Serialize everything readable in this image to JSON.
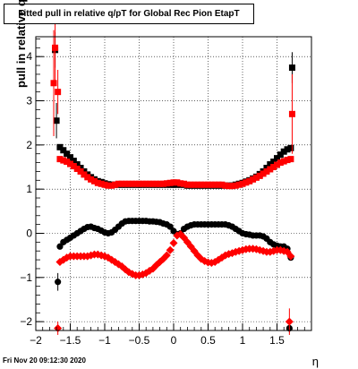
{
  "chart_data": {
    "type": "scatter",
    "title": "Fitted pull in relative q/pT for Global Rec Pion EtapT",
    "xlabel": "η",
    "ylabel": "pull in relative q/pT",
    "footer": "Fri Nov 20 09:12:30 2020",
    "xlim": [
      -2.0,
      2.0
    ],
    "ylim": [
      -2.2,
      4.45
    ],
    "xticks": [
      -2,
      -1.5,
      -1,
      -0.5,
      0,
      0.5,
      1,
      1.5
    ],
    "yticks": [
      -2,
      -1,
      0,
      1,
      2,
      3,
      4
    ],
    "grid": true,
    "marker_color_black": "#000000",
    "marker_color_red": "#ff0000",
    "series": [
      {
        "role": "mean-black",
        "marker": "circle",
        "color": "#000000",
        "points": [
          [
            -1.65,
            -0.3
          ],
          [
            -1.6,
            -0.2
          ],
          [
            -1.55,
            -0.15
          ],
          [
            -1.5,
            -0.1
          ],
          [
            -1.45,
            -0.05
          ],
          [
            -1.4,
            0.0
          ],
          [
            -1.35,
            0.05
          ],
          [
            -1.3,
            0.1
          ],
          [
            -1.25,
            0.14
          ],
          [
            -1.2,
            0.15
          ],
          [
            -1.15,
            0.12
          ],
          [
            -1.1,
            0.1
          ],
          [
            -1.05,
            0.06
          ],
          [
            -1.0,
            0.02
          ],
          [
            -0.95,
            0.0
          ],
          [
            -0.9,
            0.02
          ],
          [
            -0.85,
            0.08
          ],
          [
            -0.8,
            0.15
          ],
          [
            -0.75,
            0.22
          ],
          [
            -0.7,
            0.27
          ],
          [
            -0.65,
            0.28
          ],
          [
            -0.6,
            0.28
          ],
          [
            -0.55,
            0.28
          ],
          [
            -0.5,
            0.28
          ],
          [
            -0.45,
            0.28
          ],
          [
            -0.4,
            0.28
          ],
          [
            -0.35,
            0.27
          ],
          [
            -0.3,
            0.27
          ],
          [
            -0.25,
            0.26
          ],
          [
            -0.2,
            0.25
          ],
          [
            -0.15,
            0.22
          ],
          [
            -0.1,
            0.2
          ],
          [
            -0.05,
            0.15
          ],
          [
            0.0,
            0.05
          ],
          [
            0.05,
            -0.02
          ],
          [
            0.1,
            0.0
          ],
          [
            0.15,
            0.1
          ],
          [
            0.2,
            0.15
          ],
          [
            0.25,
            0.18
          ],
          [
            0.3,
            0.2
          ],
          [
            0.35,
            0.2
          ],
          [
            0.4,
            0.2
          ],
          [
            0.45,
            0.2
          ],
          [
            0.5,
            0.2
          ],
          [
            0.55,
            0.2
          ],
          [
            0.6,
            0.2
          ],
          [
            0.65,
            0.2
          ],
          [
            0.7,
            0.2
          ],
          [
            0.75,
            0.2
          ],
          [
            0.8,
            0.18
          ],
          [
            0.85,
            0.15
          ],
          [
            0.9,
            0.1
          ],
          [
            0.95,
            0.05
          ],
          [
            1.0,
            0.0
          ],
          [
            1.05,
            -0.02
          ],
          [
            1.1,
            -0.03
          ],
          [
            1.15,
            -0.05
          ],
          [
            1.2,
            -0.05
          ],
          [
            1.25,
            -0.05
          ],
          [
            1.3,
            -0.07
          ],
          [
            1.35,
            -0.12
          ],
          [
            1.4,
            -0.2
          ],
          [
            1.45,
            -0.25
          ],
          [
            1.5,
            -0.28
          ],
          [
            1.55,
            -0.3
          ],
          [
            1.6,
            -0.3
          ],
          [
            1.65,
            -0.35
          ],
          [
            1.7,
            -0.55
          ]
        ],
        "outliers": [
          {
            "x": -1.68,
            "y": -1.1,
            "err": 0.2
          },
          {
            "x": 1.68,
            "y": -2.15,
            "err": 0.1
          }
        ]
      },
      {
        "role": "mean-red",
        "marker": "diamond",
        "color": "#ff0000",
        "points": [
          [
            -1.65,
            -0.65
          ],
          [
            -1.6,
            -0.6
          ],
          [
            -1.55,
            -0.55
          ],
          [
            -1.5,
            -0.52
          ],
          [
            -1.45,
            -0.52
          ],
          [
            -1.4,
            -0.52
          ],
          [
            -1.35,
            -0.52
          ],
          [
            -1.3,
            -0.52
          ],
          [
            -1.25,
            -0.52
          ],
          [
            -1.2,
            -0.5
          ],
          [
            -1.15,
            -0.48
          ],
          [
            -1.1,
            -0.48
          ],
          [
            -1.05,
            -0.5
          ],
          [
            -1.0,
            -0.52
          ],
          [
            -0.95,
            -0.55
          ],
          [
            -0.9,
            -0.6
          ],
          [
            -0.85,
            -0.65
          ],
          [
            -0.8,
            -0.7
          ],
          [
            -0.75,
            -0.75
          ],
          [
            -0.7,
            -0.82
          ],
          [
            -0.65,
            -0.88
          ],
          [
            -0.6,
            -0.92
          ],
          [
            -0.55,
            -0.95
          ],
          [
            -0.5,
            -0.95
          ],
          [
            -0.45,
            -0.93
          ],
          [
            -0.4,
            -0.9
          ],
          [
            -0.35,
            -0.85
          ],
          [
            -0.3,
            -0.8
          ],
          [
            -0.25,
            -0.72
          ],
          [
            -0.2,
            -0.65
          ],
          [
            -0.15,
            -0.58
          ],
          [
            -0.1,
            -0.5
          ],
          [
            -0.05,
            -0.38
          ],
          [
            0.0,
            -0.22
          ],
          [
            0.05,
            -0.05
          ],
          [
            0.1,
            -0.02
          ],
          [
            0.15,
            -0.1
          ],
          [
            0.2,
            -0.2
          ],
          [
            0.25,
            -0.3
          ],
          [
            0.3,
            -0.4
          ],
          [
            0.35,
            -0.5
          ],
          [
            0.4,
            -0.58
          ],
          [
            0.45,
            -0.63
          ],
          [
            0.5,
            -0.66
          ],
          [
            0.55,
            -0.67
          ],
          [
            0.6,
            -0.65
          ],
          [
            0.65,
            -0.6
          ],
          [
            0.7,
            -0.55
          ],
          [
            0.75,
            -0.5
          ],
          [
            0.8,
            -0.47
          ],
          [
            0.85,
            -0.45
          ],
          [
            0.9,
            -0.42
          ],
          [
            0.95,
            -0.4
          ],
          [
            1.0,
            -0.38
          ],
          [
            1.05,
            -0.36
          ],
          [
            1.1,
            -0.35
          ],
          [
            1.15,
            -0.35
          ],
          [
            1.2,
            -0.36
          ],
          [
            1.25,
            -0.38
          ],
          [
            1.3,
            -0.4
          ],
          [
            1.35,
            -0.42
          ],
          [
            1.4,
            -0.42
          ],
          [
            1.45,
            -0.4
          ],
          [
            1.5,
            -0.38
          ],
          [
            1.55,
            -0.38
          ],
          [
            1.6,
            -0.4
          ],
          [
            1.65,
            -0.42
          ],
          [
            1.7,
            -0.52
          ]
        ],
        "outliers": [
          {
            "x": -1.68,
            "y": -2.15,
            "err": 0.15
          },
          {
            "x": 1.68,
            "y": -2.0,
            "err": 0.3
          }
        ]
      },
      {
        "role": "width-black",
        "marker": "square",
        "color": "#000000",
        "points": [
          [
            -1.65,
            1.95
          ],
          [
            -1.6,
            1.88
          ],
          [
            -1.55,
            1.8
          ],
          [
            -1.5,
            1.72
          ],
          [
            -1.45,
            1.64
          ],
          [
            -1.4,
            1.56
          ],
          [
            -1.35,
            1.48
          ],
          [
            -1.3,
            1.4
          ],
          [
            -1.25,
            1.33
          ],
          [
            -1.2,
            1.27
          ],
          [
            -1.15,
            1.22
          ],
          [
            -1.1,
            1.18
          ],
          [
            -1.05,
            1.16
          ],
          [
            -1.0,
            1.13
          ],
          [
            -0.95,
            1.11
          ],
          [
            -0.9,
            1.1
          ],
          [
            -0.85,
            1.1
          ],
          [
            -0.8,
            1.1
          ],
          [
            -0.75,
            1.1
          ],
          [
            -0.7,
            1.1
          ],
          [
            -0.65,
            1.1
          ],
          [
            -0.6,
            1.1
          ],
          [
            -0.55,
            1.1
          ],
          [
            -0.5,
            1.1
          ],
          [
            -0.45,
            1.1
          ],
          [
            -0.4,
            1.1
          ],
          [
            -0.35,
            1.1
          ],
          [
            -0.3,
            1.1
          ],
          [
            -0.25,
            1.1
          ],
          [
            -0.2,
            1.1
          ],
          [
            -0.15,
            1.1
          ],
          [
            -0.1,
            1.1
          ],
          [
            -0.05,
            1.1
          ],
          [
            0.0,
            1.1
          ],
          [
            0.05,
            1.1
          ],
          [
            0.1,
            1.1
          ],
          [
            0.15,
            1.1
          ],
          [
            0.2,
            1.08
          ],
          [
            0.25,
            1.08
          ],
          [
            0.3,
            1.08
          ],
          [
            0.35,
            1.08
          ],
          [
            0.4,
            1.08
          ],
          [
            0.45,
            1.08
          ],
          [
            0.5,
            1.08
          ],
          [
            0.55,
            1.08
          ],
          [
            0.6,
            1.08
          ],
          [
            0.65,
            1.08
          ],
          [
            0.7,
            1.08
          ],
          [
            0.75,
            1.08
          ],
          [
            0.8,
            1.08
          ],
          [
            0.85,
            1.08
          ],
          [
            0.9,
            1.1
          ],
          [
            0.95,
            1.12
          ],
          [
            1.0,
            1.14
          ],
          [
            1.05,
            1.17
          ],
          [
            1.1,
            1.2
          ],
          [
            1.15,
            1.24
          ],
          [
            1.2,
            1.28
          ],
          [
            1.25,
            1.34
          ],
          [
            1.3,
            1.4
          ],
          [
            1.35,
            1.48
          ],
          [
            1.4,
            1.56
          ],
          [
            1.45,
            1.62
          ],
          [
            1.5,
            1.7
          ],
          [
            1.55,
            1.78
          ],
          [
            1.6,
            1.85
          ],
          [
            1.65,
            1.9
          ],
          [
            1.7,
            1.93
          ]
        ],
        "outliers": [
          {
            "x": -1.72,
            "y": 4.15,
            "err": 0.4
          },
          {
            "x": -1.7,
            "y": 2.55,
            "err": 0.4
          },
          {
            "x": 1.72,
            "y": 3.75,
            "err": 0.35
          }
        ]
      },
      {
        "role": "width-red",
        "marker": "square",
        "color": "#ff0000",
        "points": [
          [
            -1.65,
            1.68
          ],
          [
            -1.6,
            1.65
          ],
          [
            -1.55,
            1.62
          ],
          [
            -1.5,
            1.57
          ],
          [
            -1.45,
            1.52
          ],
          [
            -1.4,
            1.46
          ],
          [
            -1.35,
            1.4
          ],
          [
            -1.3,
            1.33
          ],
          [
            -1.25,
            1.27
          ],
          [
            -1.2,
            1.22
          ],
          [
            -1.15,
            1.18
          ],
          [
            -1.1,
            1.14
          ],
          [
            -1.05,
            1.12
          ],
          [
            -1.0,
            1.1
          ],
          [
            -0.95,
            1.08
          ],
          [
            -0.9,
            1.08
          ],
          [
            -0.85,
            1.1
          ],
          [
            -0.8,
            1.12
          ],
          [
            -0.75,
            1.12
          ],
          [
            -0.7,
            1.12
          ],
          [
            -0.65,
            1.12
          ],
          [
            -0.6,
            1.12
          ],
          [
            -0.55,
            1.12
          ],
          [
            -0.5,
            1.12
          ],
          [
            -0.45,
            1.12
          ],
          [
            -0.4,
            1.12
          ],
          [
            -0.35,
            1.12
          ],
          [
            -0.3,
            1.12
          ],
          [
            -0.25,
            1.12
          ],
          [
            -0.2,
            1.12
          ],
          [
            -0.15,
            1.12
          ],
          [
            -0.1,
            1.13
          ],
          [
            -0.05,
            1.14
          ],
          [
            0.0,
            1.15
          ],
          [
            0.05,
            1.15
          ],
          [
            0.1,
            1.13
          ],
          [
            0.15,
            1.12
          ],
          [
            0.2,
            1.1
          ],
          [
            0.25,
            1.1
          ],
          [
            0.3,
            1.1
          ],
          [
            0.35,
            1.1
          ],
          [
            0.4,
            1.1
          ],
          [
            0.45,
            1.1
          ],
          [
            0.5,
            1.1
          ],
          [
            0.55,
            1.1
          ],
          [
            0.6,
            1.1
          ],
          [
            0.65,
            1.1
          ],
          [
            0.7,
            1.1
          ],
          [
            0.75,
            1.08
          ],
          [
            0.8,
            1.07
          ],
          [
            0.85,
            1.07
          ],
          [
            0.9,
            1.08
          ],
          [
            0.95,
            1.1
          ],
          [
            1.0,
            1.12
          ],
          [
            1.05,
            1.15
          ],
          [
            1.1,
            1.18
          ],
          [
            1.15,
            1.22
          ],
          [
            1.2,
            1.26
          ],
          [
            1.25,
            1.3
          ],
          [
            1.3,
            1.35
          ],
          [
            1.35,
            1.4
          ],
          [
            1.4,
            1.45
          ],
          [
            1.45,
            1.5
          ],
          [
            1.5,
            1.55
          ],
          [
            1.55,
            1.6
          ],
          [
            1.6,
            1.63
          ],
          [
            1.65,
            1.66
          ],
          [
            1.7,
            1.68
          ]
        ],
        "outliers": [
          {
            "x": -1.74,
            "y": 3.4,
            "err": 1.2
          },
          {
            "x": -1.72,
            "y": 4.2,
            "err": 0.8
          },
          {
            "x": -1.68,
            "y": 3.2,
            "err": 0.5
          },
          {
            "x": 1.72,
            "y": 2.7,
            "err": 0.9
          }
        ]
      }
    ]
  }
}
